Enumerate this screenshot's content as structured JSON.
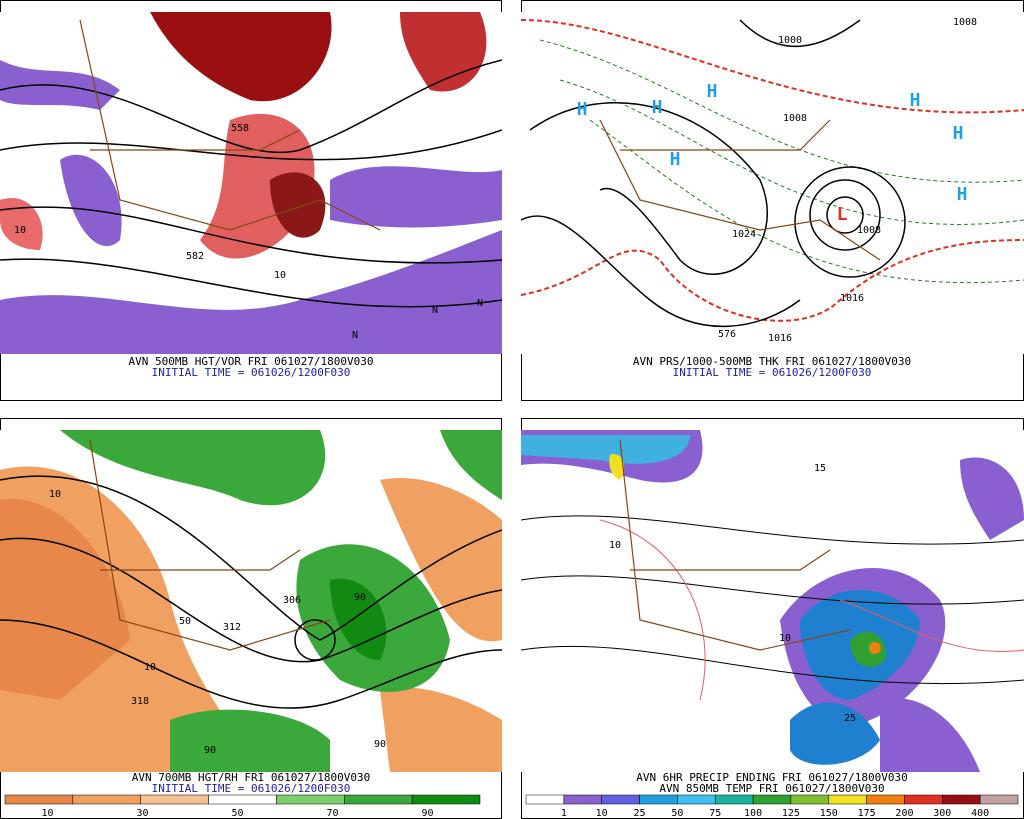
{
  "panels": [
    {
      "captions": [
        "AVN 500MB HGT/VOR FRI 061027/1800V030",
        "INITIAL TIME = 061026/1200F030"
      ],
      "labels": [
        "558",
        "582",
        "10",
        "10",
        "N",
        "N",
        "N"
      ]
    },
    {
      "captions": [
        "AVN PRS/1000-500MB THK FRI 061027/1800V030",
        "INITIAL TIME = 061026/1200F030"
      ],
      "labels": [
        "H",
        "H",
        "H",
        "H",
        "H",
        "H",
        "H",
        "L",
        "1024",
        "1008",
        "1016",
        "1000",
        "1008",
        "1016",
        "576",
        "1008"
      ]
    },
    {
      "captions": [
        "AVN 700MB HGT/RH FRI 061027/1800V030",
        "INITIAL TIME = 061026/1200F030"
      ],
      "labels": [
        "10",
        "10",
        "50",
        "90",
        "90",
        "90",
        "318",
        "312",
        "306"
      ],
      "colorbar": [
        "10",
        "30",
        "50",
        "70",
        "90"
      ]
    },
    {
      "captions": [
        "AVN 6HR PRECIP ENDING FRI 061027/1800V030",
        "AVN 850MB TEMP FRI 061027/1800V030"
      ],
      "labels": [
        "10",
        "10",
        "25",
        "15"
      ],
      "colorbar": [
        "1",
        "10",
        "25",
        "50",
        "75",
        "100",
        "125",
        "150",
        "175",
        "200",
        "300",
        "400"
      ]
    }
  ]
}
